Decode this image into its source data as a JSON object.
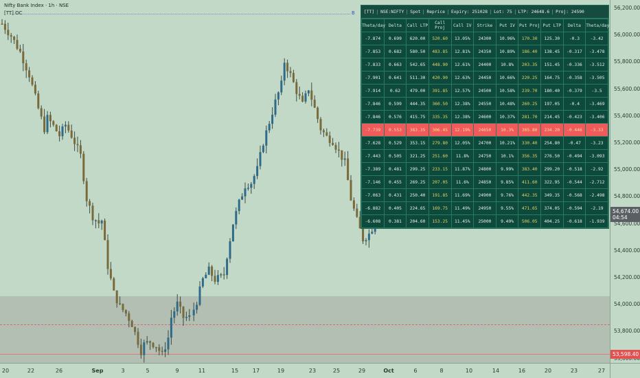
{
  "legend": {
    "title": "Nifty Bank Index · 1h · NSE",
    "indicator": "[TT] OC",
    "marker": "B"
  },
  "price_axis": {
    "ticks": [
      "56,200.00",
      "56,000.00",
      "55,800.00",
      "55,600.00",
      "55,400.00",
      "55,200.00",
      "55,000.00",
      "54,800.00",
      "54,600.00",
      "54,400.00",
      "54,200.00",
      "54,000.00",
      "53,800.00",
      "53,600.00"
    ],
    "current_price": "54,674.00",
    "countdown": "04:54",
    "low_tag": "53,598.40"
  },
  "time_axis": {
    "ticks": [
      {
        "label": "20",
        "bold": false
      },
      {
        "label": "22",
        "bold": false
      },
      {
        "label": "26",
        "bold": false
      },
      {
        "label": "Sep",
        "bold": true
      },
      {
        "label": "3",
        "bold": false
      },
      {
        "label": "5",
        "bold": false
      },
      {
        "label": "9",
        "bold": false
      },
      {
        "label": "11",
        "bold": false
      },
      {
        "label": "15",
        "bold": false
      },
      {
        "label": "17",
        "bold": false
      },
      {
        "label": "19",
        "bold": false
      },
      {
        "label": "23",
        "bold": false
      },
      {
        "label": "25",
        "bold": false
      },
      {
        "label": "29",
        "bold": false
      },
      {
        "label": "Oct",
        "bold": true
      },
      {
        "label": "6",
        "bold": false
      },
      {
        "label": "8",
        "bold": false
      },
      {
        "label": "10",
        "bold": false
      },
      {
        "label": "14",
        "bold": false
      },
      {
        "label": "16",
        "bold": false
      },
      {
        "label": "20",
        "bold": false
      },
      {
        "label": "23",
        "bold": false
      },
      {
        "label": "27",
        "bold": false
      }
    ]
  },
  "option_chain": {
    "header": [
      "[TT]",
      "NSE:NIFTY",
      "Spot",
      "Reprice",
      "Expiry: 251028",
      "Lot: 75",
      "LTP: 24648.6",
      "Proj: 24590"
    ],
    "columns": [
      "Theta/day",
      "Delta",
      "Call LTP",
      "Call Proj",
      "Call IV",
      "Strike",
      "Put IV",
      "Put Proj",
      "Put LTP",
      "Delta",
      "Theta/day"
    ],
    "atm_strike": "24650",
    "rows": [
      [
        "-7.874",
        "0.699",
        "620.00",
        "520.60",
        "13.05%",
        "24300",
        "10.96%",
        "170.30",
        "125.30",
        "-0.3",
        "-3.42"
      ],
      [
        "-7.853",
        "0.682",
        "580.50",
        "483.85",
        "12.81%",
        "24350",
        "10.89%",
        "186.40",
        "138.45",
        "-0.317",
        "-3.478"
      ],
      [
        "-7.833",
        "0.663",
        "542.65",
        "448.90",
        "12.61%",
        "24400",
        "10.8%",
        "203.35",
        "151.45",
        "-0.336",
        "-3.512"
      ],
      [
        "-7.901",
        "0.641",
        "511.30",
        "420.90",
        "12.63%",
        "24450",
        "10.66%",
        "220.25",
        "164.75",
        "-0.358",
        "-3.505"
      ],
      [
        "-7.914",
        "0.62",
        "479.00",
        "391.85",
        "12.57%",
        "24500",
        "10.58%",
        "239.70",
        "180.40",
        "-0.379",
        "-3.5"
      ],
      [
        "-7.846",
        "0.599",
        "444.35",
        "360.50",
        "12.38%",
        "24550",
        "10.48%",
        "260.25",
        "197.05",
        "-0.4",
        "-3.469"
      ],
      [
        "-7.846",
        "0.576",
        "415.75",
        "335.35",
        "12.38%",
        "24600",
        "10.37%",
        "281.70",
        "214.45",
        "-0.423",
        "-3.406"
      ],
      [
        "-7.739",
        "0.553",
        "383.35",
        "306.45",
        "12.19%",
        "24650",
        "10.3%",
        "305.80",
        "234.20",
        "-0.446",
        "-3.33"
      ],
      [
        "-7.628",
        "0.529",
        "353.15",
        "279.80",
        "12.05%",
        "24700",
        "10.21%",
        "330.40",
        "254.80",
        "-0.47",
        "-3.23"
      ],
      [
        "-7.443",
        "0.505",
        "321.25",
        "251.60",
        "11.8%",
        "24750",
        "10.1%",
        "356.35",
        "276.50",
        "-0.494",
        "-3.093"
      ],
      [
        "-7.389",
        "0.481",
        "299.25",
        "233.15",
        "11.87%",
        "24800",
        "9.99%",
        "383.40",
        "299.20",
        "-0.518",
        "-2.92"
      ],
      [
        "-7.146",
        "0.455",
        "269.25",
        "207.05",
        "11.6%",
        "24850",
        "9.85%",
        "411.60",
        "322.95",
        "-0.544",
        "-2.712"
      ],
      [
        "-7.063",
        "0.431",
        "250.40",
        "191.85",
        "11.69%",
        "24900",
        "9.76%",
        "442.35",
        "349.35",
        "-0.568",
        "-2.498"
      ],
      [
        "-6.882",
        "0.405",
        "224.65",
        "169.75",
        "11.49%",
        "24950",
        "9.55%",
        "471.65",
        "374.05",
        "-0.594",
        "-2.19"
      ],
      [
        "-6.608",
        "0.381",
        "204.60",
        "153.25",
        "11.45%",
        "25000",
        "9.49%",
        "506.05",
        "404.25",
        "-0.618",
        "-1.939"
      ]
    ]
  },
  "chart_data": {
    "type": "candlestick",
    "symbol": "Nifty Bank Index",
    "interval": "1h",
    "exchange": "NSE",
    "ylim": [
      53500,
      56250
    ],
    "shaded_zone": [
      53500,
      54030
    ],
    "dashed_level": 53820,
    "low_level": 53598.4,
    "last_price": 54674.0,
    "path_points": [
      [
        0,
        56080
      ],
      [
        3,
        55990
      ],
      [
        6,
        55870
      ],
      [
        9,
        55700
      ],
      [
        12,
        55450
      ],
      [
        14,
        55300
      ],
      [
        15,
        55380
      ],
      [
        17,
        55320
      ],
      [
        19,
        55250
      ],
      [
        21,
        55330
      ],
      [
        23,
        55250
      ],
      [
        25,
        55150
      ],
      [
        26,
        55100
      ],
      [
        28,
        54780
      ],
      [
        30,
        54650
      ],
      [
        32,
        54600
      ],
      [
        33,
        54620
      ],
      [
        35,
        54280
      ],
      [
        37,
        54080
      ],
      [
        39,
        53980
      ],
      [
        41,
        53930
      ],
      [
        43,
        53850
      ],
      [
        45,
        53720
      ],
      [
        46,
        53650
      ],
      [
        47,
        53700
      ],
      [
        49,
        53720
      ],
      [
        51,
        53690
      ],
      [
        53,
        53620
      ],
      [
        55,
        53750
      ],
      [
        56,
        53900
      ],
      [
        58,
        54000
      ],
      [
        60,
        53900
      ],
      [
        62,
        53900
      ],
      [
        64,
        54020
      ],
      [
        66,
        54180
      ],
      [
        68,
        54250
      ],
      [
        70,
        54180
      ],
      [
        72,
        54200
      ],
      [
        73,
        54220
      ],
      [
        74,
        54360
      ],
      [
        76,
        54600
      ],
      [
        78,
        54750
      ],
      [
        80,
        54880
      ],
      [
        82,
        54900
      ],
      [
        84,
        55000
      ],
      [
        86,
        55200
      ],
      [
        88,
        55350
      ],
      [
        90,
        55500
      ],
      [
        92,
        55630
      ],
      [
        93,
        55800
      ],
      [
        95,
        55700
      ],
      [
        97,
        55580
      ],
      [
        99,
        55480
      ],
      [
        101,
        55600
      ],
      [
        103,
        55450
      ],
      [
        105,
        55300
      ],
      [
        107,
        55240
      ],
      [
        109,
        55210
      ],
      [
        111,
        55130
      ],
      [
        113,
        55050
      ],
      [
        115,
        54780
      ],
      [
        117,
        54620
      ],
      [
        119,
        54480
      ],
      [
        121,
        54520
      ],
      [
        123,
        54600
      ],
      [
        125,
        54680
      ]
    ],
    "series_count": 126,
    "up_color": "#2e6b8a",
    "down_color": "#7a6a3a"
  }
}
